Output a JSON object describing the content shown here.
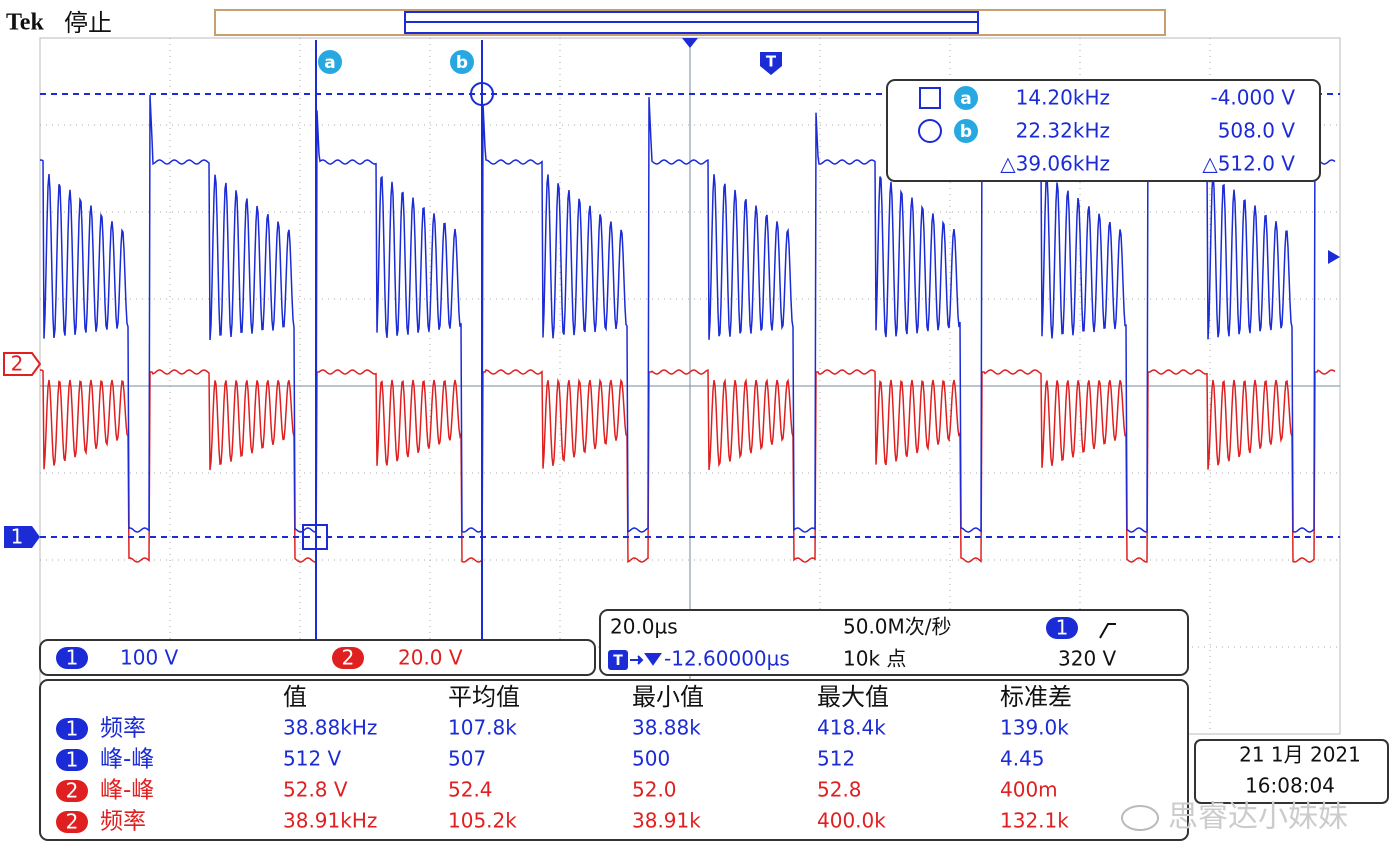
{
  "header": {
    "brand": "Tek",
    "status": "停止"
  },
  "cursor_markers": [
    "a",
    "b"
  ],
  "trigger_marker": "T",
  "channels": [
    {
      "number": "1",
      "scale": "100 V"
    },
    {
      "number": "2",
      "scale": "20.0 V"
    }
  ],
  "cursor_readout": {
    "rows": [
      [
        "14.20kHz",
        "-4.000 V"
      ],
      [
        "22.32kHz",
        "508.0 V"
      ],
      [
        "△39.06kHz",
        "△512.0 V"
      ]
    ]
  },
  "timebase": {
    "scale": "20.0µs",
    "sample_rate": "50.0M次/秒",
    "trigger_level": "320 V",
    "position": "-12.60000µs",
    "record_length": "10k 点"
  },
  "measurements": {
    "columns": [
      "值",
      "平均值",
      "最小值",
      "最大值",
      "标准差"
    ],
    "rows": [
      {
        "channel": "1",
        "name": "频率",
        "values": [
          "38.88kHz",
          "107.8k",
          "38.88k",
          "418.4k",
          "139.0k"
        ]
      },
      {
        "channel": "1",
        "name": "峰-峰",
        "values": [
          "512 V",
          "507",
          "500",
          "512",
          "4.45"
        ]
      },
      {
        "channel": "2",
        "name": "峰-峰",
        "values": [
          "52.8 V",
          "52.4",
          "52.0",
          "52.8",
          "400m"
        ]
      },
      {
        "channel": "2",
        "name": "频率",
        "values": [
          "38.91kHz",
          "105.2k",
          "38.91k",
          "400.0k",
          "132.1k"
        ]
      }
    ]
  },
  "datetime": {
    "date": "21 1月 2021",
    "time": "16:08:04"
  },
  "watermark": "思睿达小妹妹"
}
